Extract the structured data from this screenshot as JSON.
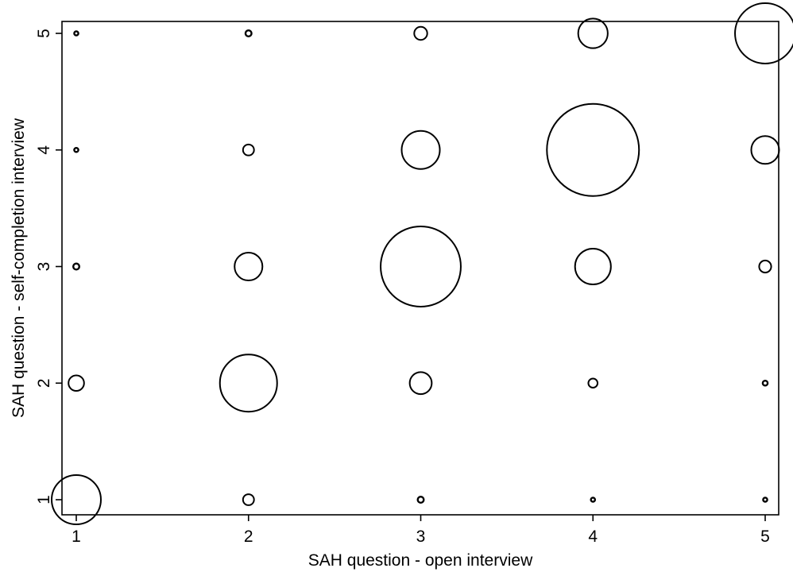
{
  "chart_data": {
    "type": "scatter",
    "subtype": "bubble",
    "title": "",
    "xlabel": "SAH question - open interview",
    "ylabel": "SAH question - self-completion interview",
    "xlim": [
      1,
      5
    ],
    "ylim": [
      1,
      5
    ],
    "xticks": [
      1,
      2,
      3,
      4,
      5
    ],
    "yticks": [
      1,
      2,
      3,
      4,
      5
    ],
    "grid": false,
    "legend": "none",
    "marker": "hollow-circle",
    "stroke_color": "#000000",
    "points": [
      {
        "x": 1,
        "y": 1,
        "size": 10
      },
      {
        "x": 2,
        "y": 1,
        "size": 0.5
      },
      {
        "x": 3,
        "y": 1,
        "size": 0.15
      },
      {
        "x": 4,
        "y": 1,
        "size": 0.05
      },
      {
        "x": 5,
        "y": 1,
        "size": 0.03
      },
      {
        "x": 1,
        "y": 2,
        "size": 1
      },
      {
        "x": 2,
        "y": 2,
        "size": 13.5
      },
      {
        "x": 3,
        "y": 2,
        "size": 2
      },
      {
        "x": 4,
        "y": 2,
        "size": 0.35
      },
      {
        "x": 5,
        "y": 2,
        "size": 0.1
      },
      {
        "x": 1,
        "y": 3,
        "size": 0.15
      },
      {
        "x": 2,
        "y": 3,
        "size": 3.2
      },
      {
        "x": 3,
        "y": 3,
        "size": 26.5
      },
      {
        "x": 4,
        "y": 3,
        "size": 5.3
      },
      {
        "x": 5,
        "y": 3,
        "size": 0.6
      },
      {
        "x": 1,
        "y": 4,
        "size": 0.05
      },
      {
        "x": 2,
        "y": 4,
        "size": 0.5
      },
      {
        "x": 3,
        "y": 4,
        "size": 6
      },
      {
        "x": 4,
        "y": 4,
        "size": 35
      },
      {
        "x": 5,
        "y": 4,
        "size": 3.2
      },
      {
        "x": 1,
        "y": 5,
        "size": 0.05
      },
      {
        "x": 2,
        "y": 5,
        "size": 0.15
      },
      {
        "x": 3,
        "y": 5,
        "size": 0.7
      },
      {
        "x": 4,
        "y": 5,
        "size": 3.6
      },
      {
        "x": 5,
        "y": 5,
        "size": 15
      }
    ]
  }
}
